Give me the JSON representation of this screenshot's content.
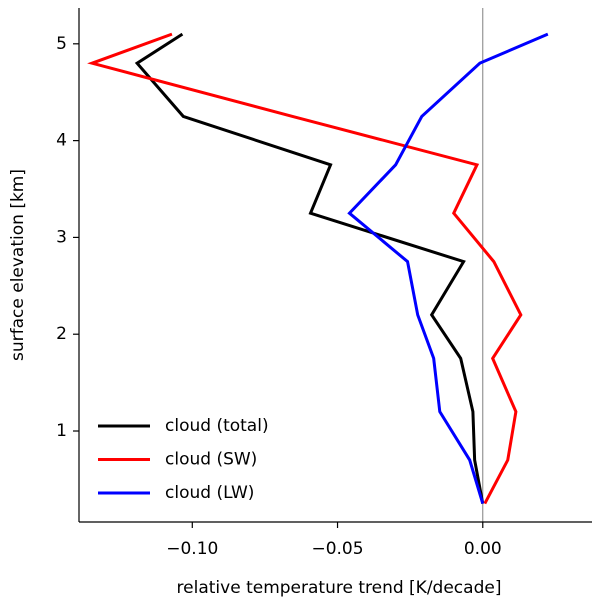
{
  "chart_data": {
    "type": "line",
    "xlabel": "relative temperature trend [K/decade]",
    "ylabel": "surface elevation [km]",
    "y": [
      5.1,
      4.8,
      4.25,
      3.75,
      3.25,
      2.75,
      2.2,
      1.75,
      1.2,
      0.7,
      0.25
    ],
    "series": [
      {
        "name": "cloud (total)",
        "color": "#000000",
        "values": [
          -0.1034,
          -0.119,
          -0.1031,
          -0.0524,
          -0.0593,
          -0.0066,
          -0.0176,
          -0.0076,
          -0.0034,
          -0.0028,
          0
        ]
      },
      {
        "name": "cloud (SW)",
        "color": "#ff0000",
        "values": [
          -0.107,
          -0.1345,
          -0.0655,
          -0.002,
          -0.01,
          0.0038,
          0.0131,
          0.0034,
          0.0114,
          0.0086,
          0.0007
        ]
      },
      {
        "name": "cloud (LW)",
        "color": "#0000ff",
        "values": [
          0.0224,
          -0.001,
          -0.021,
          -0.03,
          -0.0459,
          -0.0259,
          -0.0224,
          -0.0169,
          -0.0148,
          -0.0045,
          0
        ]
      }
    ],
    "xlim": [
      -0.139,
      0.0376
    ],
    "xticks": [
      {
        "value": -0.1,
        "label": "−0.10"
      },
      {
        "value": -0.05,
        "label": "−0.05"
      },
      {
        "value": 0,
        "label": "0.00"
      }
    ],
    "ylim": [
      0.06,
      5.37
    ],
    "yticks": [
      1,
      2,
      3,
      4,
      5
    ],
    "legend": "lower left"
  }
}
